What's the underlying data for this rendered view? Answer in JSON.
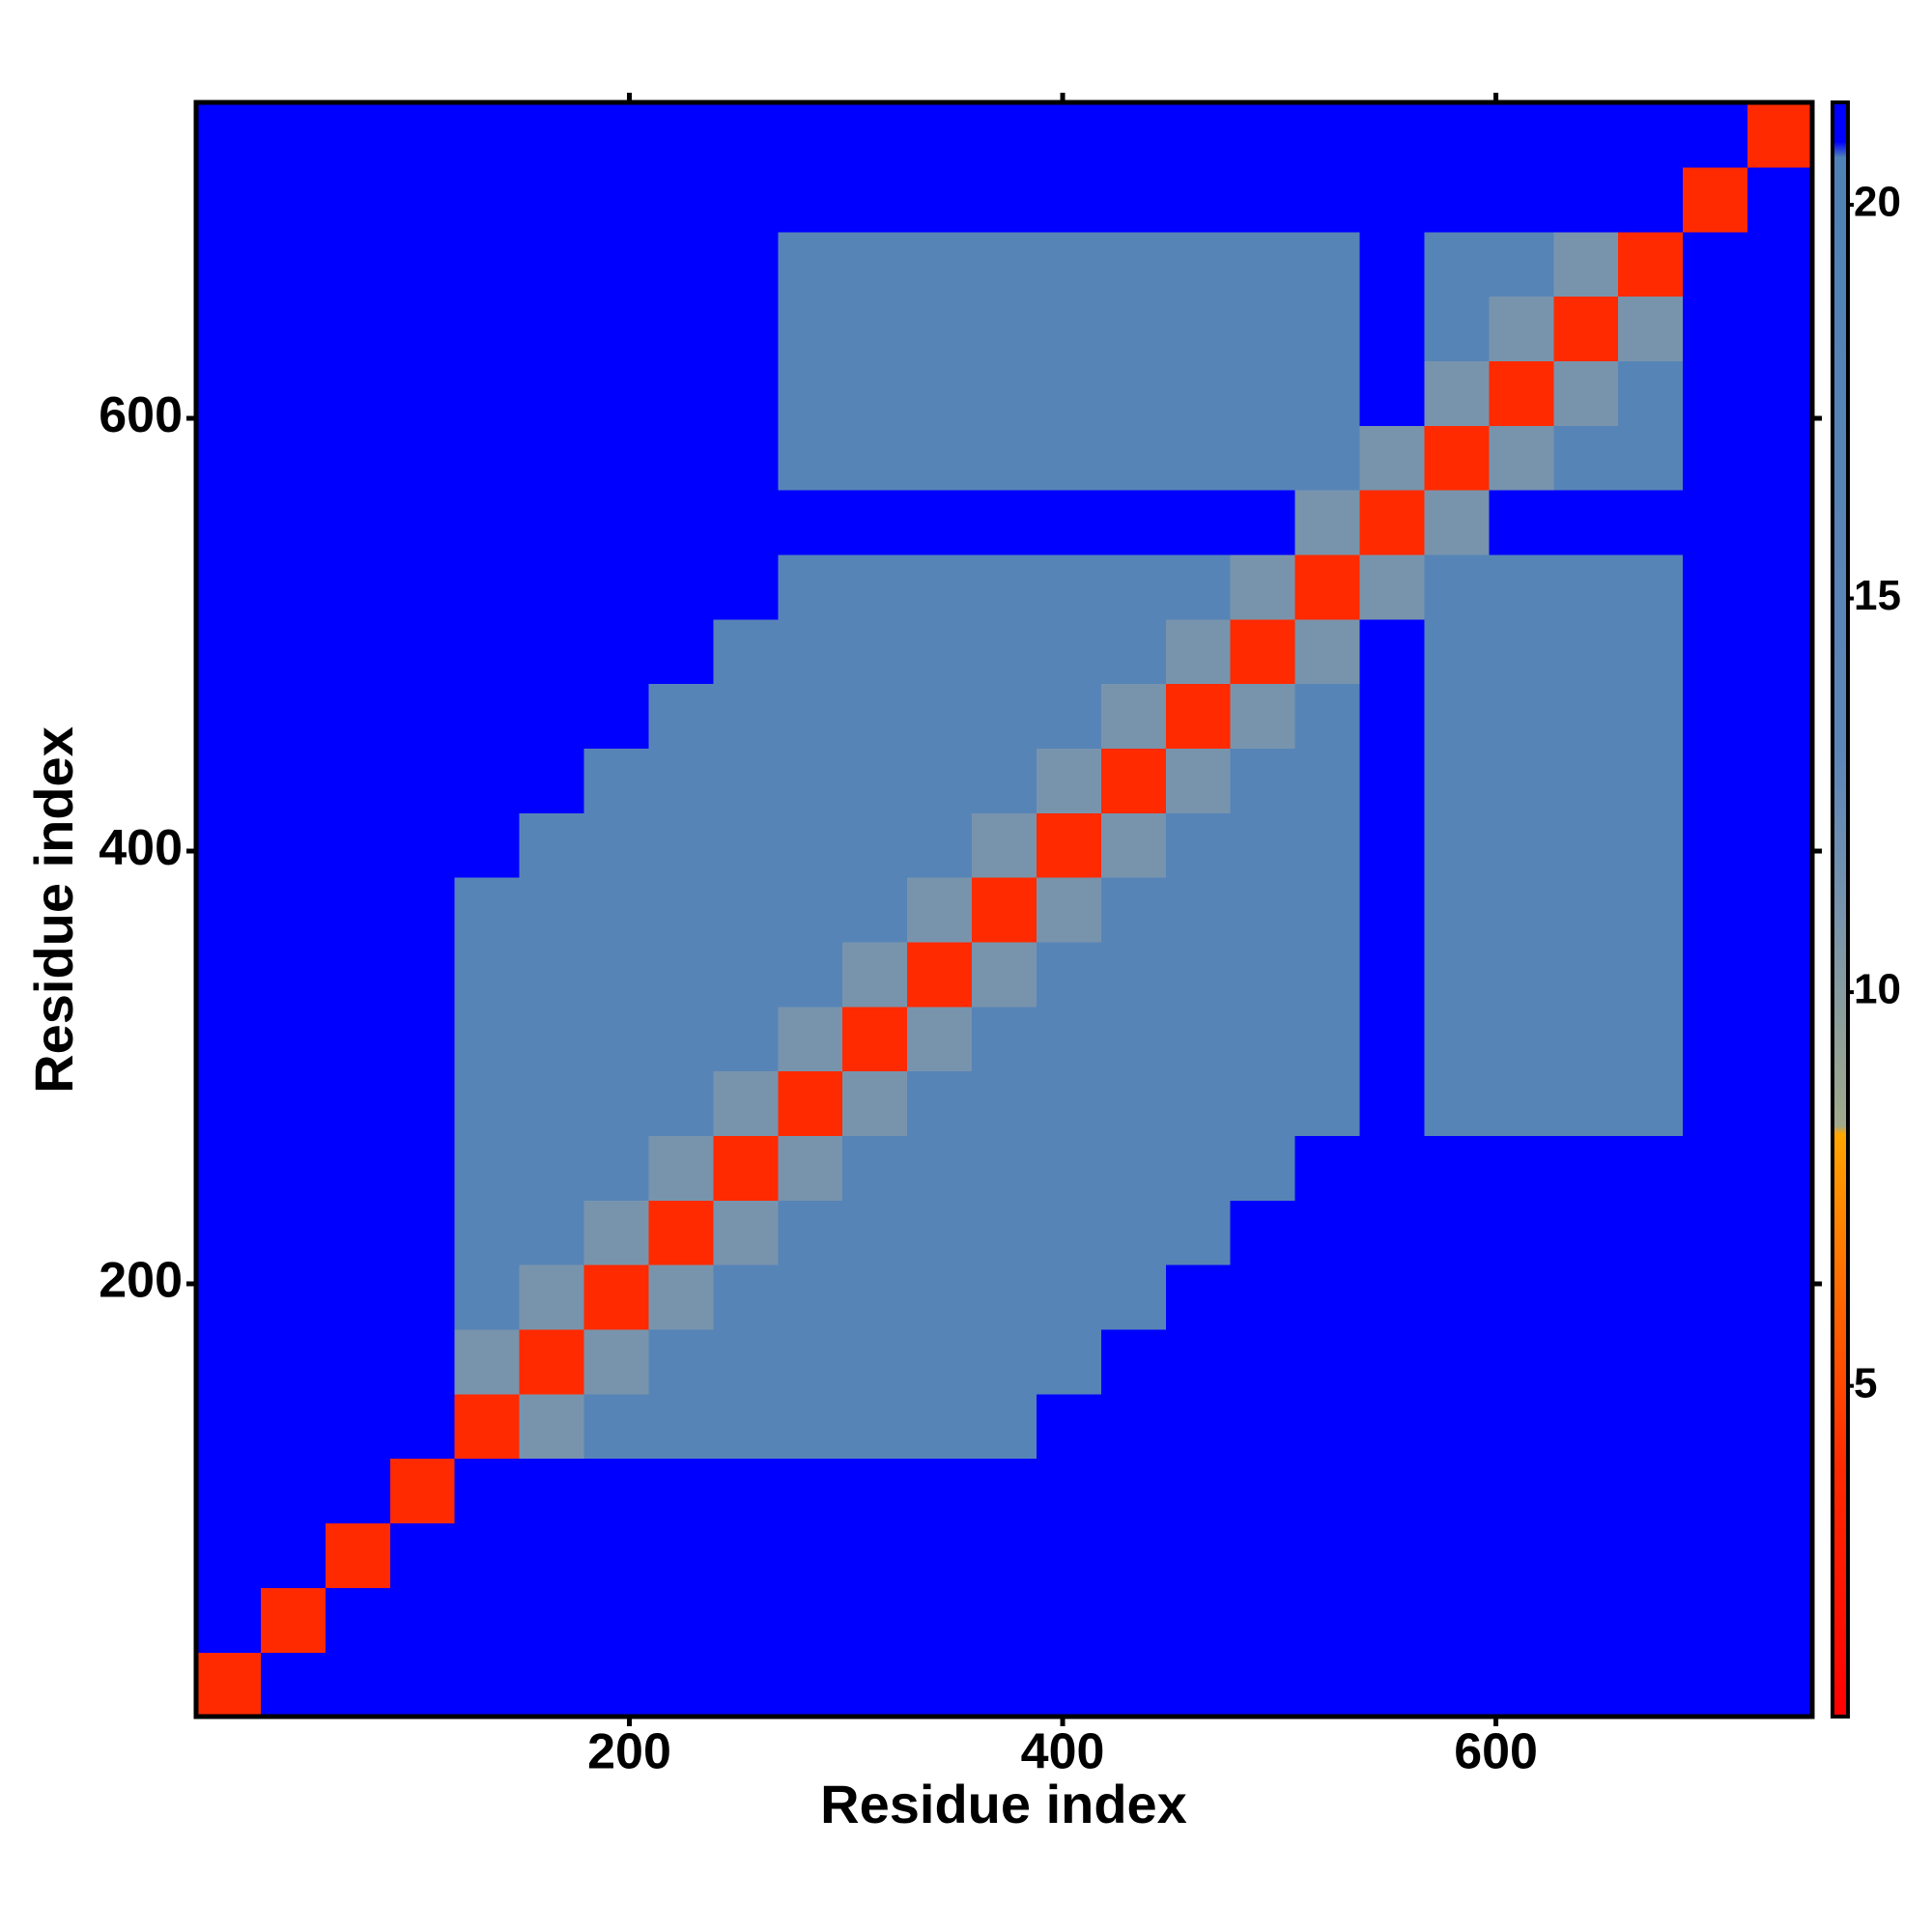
{
  "chart_data": {
    "type": "heatmap",
    "xlabel": "Residue index",
    "ylabel": "Residue index",
    "xlim": [
      0,
      746
    ],
    "ylim": [
      0,
      746
    ],
    "xticks": [
      200,
      400,
      600
    ],
    "yticks": [
      200,
      400,
      600
    ],
    "zlim": [
      0.8,
      21.3
    ],
    "zticks": [
      5,
      10,
      15,
      20
    ],
    "colorscale": [
      [
        0.8,
        "#ff0000"
      ],
      [
        4,
        "#ff2a00"
      ],
      [
        7.5,
        "#ff9000"
      ],
      [
        8.2,
        "#ffa500"
      ],
      [
        8.3,
        "#a0a98a"
      ],
      [
        11,
        "#7894ad"
      ],
      [
        13,
        "#5d86b8"
      ],
      [
        20.6,
        "#4f82b6"
      ],
      [
        20.8,
        "#0000ff"
      ],
      [
        21.3,
        "#0000ff"
      ]
    ],
    "z": [
      [
        4,
        21,
        21,
        21,
        21,
        21,
        21,
        21,
        21,
        21,
        21,
        21,
        21,
        21,
        21,
        21,
        21,
        21,
        21,
        21,
        21,
        21,
        21,
        21,
        21
      ],
      [
        21,
        4,
        21,
        21,
        21,
        21,
        21,
        21,
        21,
        21,
        21,
        21,
        21,
        21,
        21,
        21,
        21,
        21,
        21,
        21,
        21,
        21,
        21,
        21,
        21
      ],
      [
        21,
        21,
        4,
        21,
        21,
        21,
        21,
        21,
        21,
        21,
        21,
        21,
        21,
        21,
        21,
        21,
        21,
        21,
        21,
        21,
        21,
        21,
        21,
        21,
        21
      ],
      [
        21,
        21,
        21,
        4,
        21,
        21,
        21,
        21,
        21,
        21,
        21,
        21,
        21,
        21,
        21,
        21,
        21,
        21,
        21,
        21,
        21,
        21,
        21,
        21,
        21
      ],
      [
        21,
        21,
        21,
        21,
        4,
        11,
        16,
        16,
        16,
        16,
        16,
        16,
        16,
        21,
        21,
        21,
        21,
        21,
        21,
        21,
        21,
        21,
        21,
        21,
        21
      ],
      [
        21,
        21,
        21,
        21,
        11,
        4,
        11,
        16,
        16,
        16,
        16,
        16,
        16,
        16,
        21,
        21,
        21,
        21,
        21,
        21,
        21,
        21,
        21,
        21,
        21
      ],
      [
        21,
        21,
        21,
        21,
        16,
        11,
        4,
        11,
        16,
        16,
        16,
        16,
        16,
        16,
        16,
        21,
        21,
        21,
        21,
        21,
        21,
        21,
        21,
        21,
        21
      ],
      [
        21,
        21,
        21,
        21,
        16,
        16,
        11,
        4,
        11,
        16,
        16,
        16,
        16,
        16,
        16,
        16,
        21,
        21,
        21,
        21,
        21,
        21,
        21,
        21,
        21
      ],
      [
        21,
        21,
        21,
        21,
        16,
        16,
        16,
        11,
        4,
        11,
        16,
        16,
        16,
        16,
        16,
        16,
        16,
        21,
        21,
        21,
        21,
        21,
        21,
        21,
        21
      ],
      [
        21,
        21,
        21,
        21,
        16,
        16,
        16,
        16,
        11,
        4,
        11,
        16,
        16,
        16,
        16,
        16,
        16,
        16,
        21,
        16,
        16,
        16,
        16,
        21,
        21
      ],
      [
        21,
        21,
        21,
        21,
        16,
        16,
        16,
        16,
        16,
        11,
        4,
        11,
        16,
        16,
        16,
        16,
        16,
        16,
        21,
        16,
        16,
        16,
        16,
        21,
        21
      ],
      [
        21,
        21,
        21,
        21,
        16,
        16,
        16,
        16,
        16,
        16,
        11,
        4,
        11,
        16,
        16,
        16,
        16,
        16,
        21,
        16,
        16,
        16,
        16,
        21,
        21
      ],
      [
        21,
        21,
        21,
        21,
        16,
        16,
        16,
        16,
        16,
        16,
        16,
        11,
        4,
        11,
        16,
        16,
        16,
        16,
        21,
        16,
        16,
        16,
        16,
        21,
        21
      ],
      [
        21,
        21,
        21,
        21,
        21,
        16,
        16,
        16,
        16,
        16,
        16,
        16,
        11,
        4,
        11,
        16,
        16,
        16,
        21,
        16,
        16,
        16,
        16,
        21,
        21
      ],
      [
        21,
        21,
        21,
        21,
        21,
        21,
        16,
        16,
        16,
        16,
        16,
        16,
        16,
        11,
        4,
        11,
        16,
        16,
        21,
        16,
        16,
        16,
        16,
        21,
        21
      ],
      [
        21,
        21,
        21,
        21,
        21,
        21,
        21,
        16,
        16,
        16,
        16,
        16,
        16,
        16,
        11,
        4,
        11,
        16,
        21,
        16,
        16,
        16,
        16,
        21,
        21
      ],
      [
        21,
        21,
        21,
        21,
        21,
        21,
        21,
        21,
        16,
        16,
        16,
        16,
        16,
        16,
        16,
        11,
        4,
        11,
        21,
        16,
        16,
        16,
        16,
        21,
        21
      ],
      [
        21,
        21,
        21,
        21,
        21,
        21,
        21,
        21,
        21,
        16,
        16,
        16,
        16,
        16,
        16,
        16,
        11,
        4,
        11,
        16,
        16,
        16,
        16,
        21,
        21
      ],
      [
        21,
        21,
        21,
        21,
        21,
        21,
        21,
        21,
        21,
        21,
        21,
        21,
        21,
        21,
        21,
        21,
        21,
        11,
        4,
        11,
        21,
        21,
        21,
        21,
        21
      ],
      [
        21,
        21,
        21,
        21,
        21,
        21,
        21,
        21,
        21,
        16,
        16,
        16,
        16,
        16,
        16,
        16,
        16,
        16,
        11,
        4,
        11,
        16,
        16,
        21,
        21
      ],
      [
        21,
        21,
        21,
        21,
        21,
        21,
        21,
        21,
        21,
        16,
        16,
        16,
        16,
        16,
        16,
        16,
        16,
        16,
        21,
        11,
        4,
        11,
        16,
        21,
        21
      ],
      [
        21,
        21,
        21,
        21,
        21,
        21,
        21,
        21,
        21,
        16,
        16,
        16,
        16,
        16,
        16,
        16,
        16,
        16,
        21,
        16,
        11,
        4,
        11,
        21,
        21
      ],
      [
        21,
        21,
        21,
        21,
        21,
        21,
        21,
        21,
        21,
        16,
        16,
        16,
        16,
        16,
        16,
        16,
        16,
        16,
        21,
        16,
        16,
        11,
        4,
        21,
        21
      ],
      [
        21,
        21,
        21,
        21,
        21,
        21,
        21,
        21,
        21,
        21,
        21,
        21,
        21,
        21,
        21,
        21,
        21,
        21,
        21,
        21,
        21,
        21,
        21,
        4,
        21
      ],
      [
        21,
        21,
        21,
        21,
        21,
        21,
        21,
        21,
        21,
        21,
        21,
        21,
        21,
        21,
        21,
        21,
        21,
        21,
        21,
        21,
        21,
        21,
        21,
        21,
        4
      ]
    ]
  }
}
